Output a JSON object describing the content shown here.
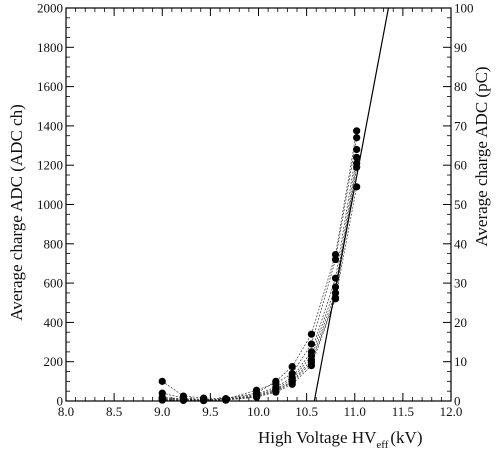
{
  "chart_data": {
    "type": "scatter",
    "xlabel": "High Voltage HV_eff (kV)",
    "xlabel_parts": {
      "main": "High Voltage HV",
      "subscript": "eff",
      "unit": "(kV)"
    },
    "ylabel": "Average charge ADC (ADC ch)",
    "y2label": "Average charge ADC (pC)",
    "xlim": [
      8.0,
      12.0
    ],
    "ylim": [
      0,
      2000
    ],
    "y2lim": [
      0,
      100
    ],
    "x_ticks": [
      8.0,
      8.5,
      9.0,
      9.5,
      10.0,
      10.5,
      11.0,
      11.5,
      12.0
    ],
    "x_tick_labels": [
      "8.0",
      "8.5",
      "9.0",
      "9.5",
      "10.0",
      "10.5",
      "11.0",
      "11.5",
      "12.0"
    ],
    "y_ticks": [
      0,
      200,
      400,
      600,
      800,
      1000,
      1200,
      1400,
      1600,
      1800,
      2000
    ],
    "y_tick_labels": [
      "0",
      "200",
      "400",
      "600",
      "800",
      "1000",
      "1200",
      "1400",
      "1600",
      "1800",
      "2000"
    ],
    "y2_ticks": [
      0,
      10,
      20,
      30,
      40,
      50,
      60,
      70,
      80,
      90,
      100
    ],
    "y2_tick_labels": [
      "0",
      "10",
      "20",
      "30",
      "40",
      "50",
      "60",
      "70",
      "80",
      "90",
      "100"
    ],
    "grid": false,
    "legend": "none",
    "x_points": [
      9.0,
      9.22,
      9.43,
      9.66,
      9.98,
      10.18,
      10.35,
      10.55,
      10.8,
      11.02
    ],
    "series": [
      {
        "values": [
          100,
          25,
          15,
          12,
          40,
          100,
          175,
          340,
          745,
          1375
        ]
      },
      {
        "values": [
          40,
          15,
          8,
          10,
          55,
          90,
          140,
          290,
          720,
          1340
        ]
      },
      {
        "values": [
          20,
          10,
          5,
          8,
          35,
          70,
          120,
          250,
          625,
          1280
        ]
      },
      {
        "values": [
          15,
          8,
          5,
          5,
          30,
          60,
          110,
          230,
          580,
          1240
        ]
      },
      {
        "values": [
          10,
          5,
          3,
          5,
          25,
          55,
          100,
          210,
          550,
          1210
        ]
      },
      {
        "values": [
          5,
          5,
          3,
          5,
          20,
          50,
          95,
          195,
          525,
          1190
        ]
      },
      {
        "values": [
          5,
          3,
          2,
          5,
          20,
          45,
          85,
          180,
          520,
          1090
        ]
      }
    ],
    "fit_line": {
      "x": [
        10.58,
        11.35
      ],
      "y": [
        0,
        2000
      ]
    },
    "colors": {
      "marker": "#000000",
      "line": "#000000",
      "axis": "#000000"
    }
  }
}
